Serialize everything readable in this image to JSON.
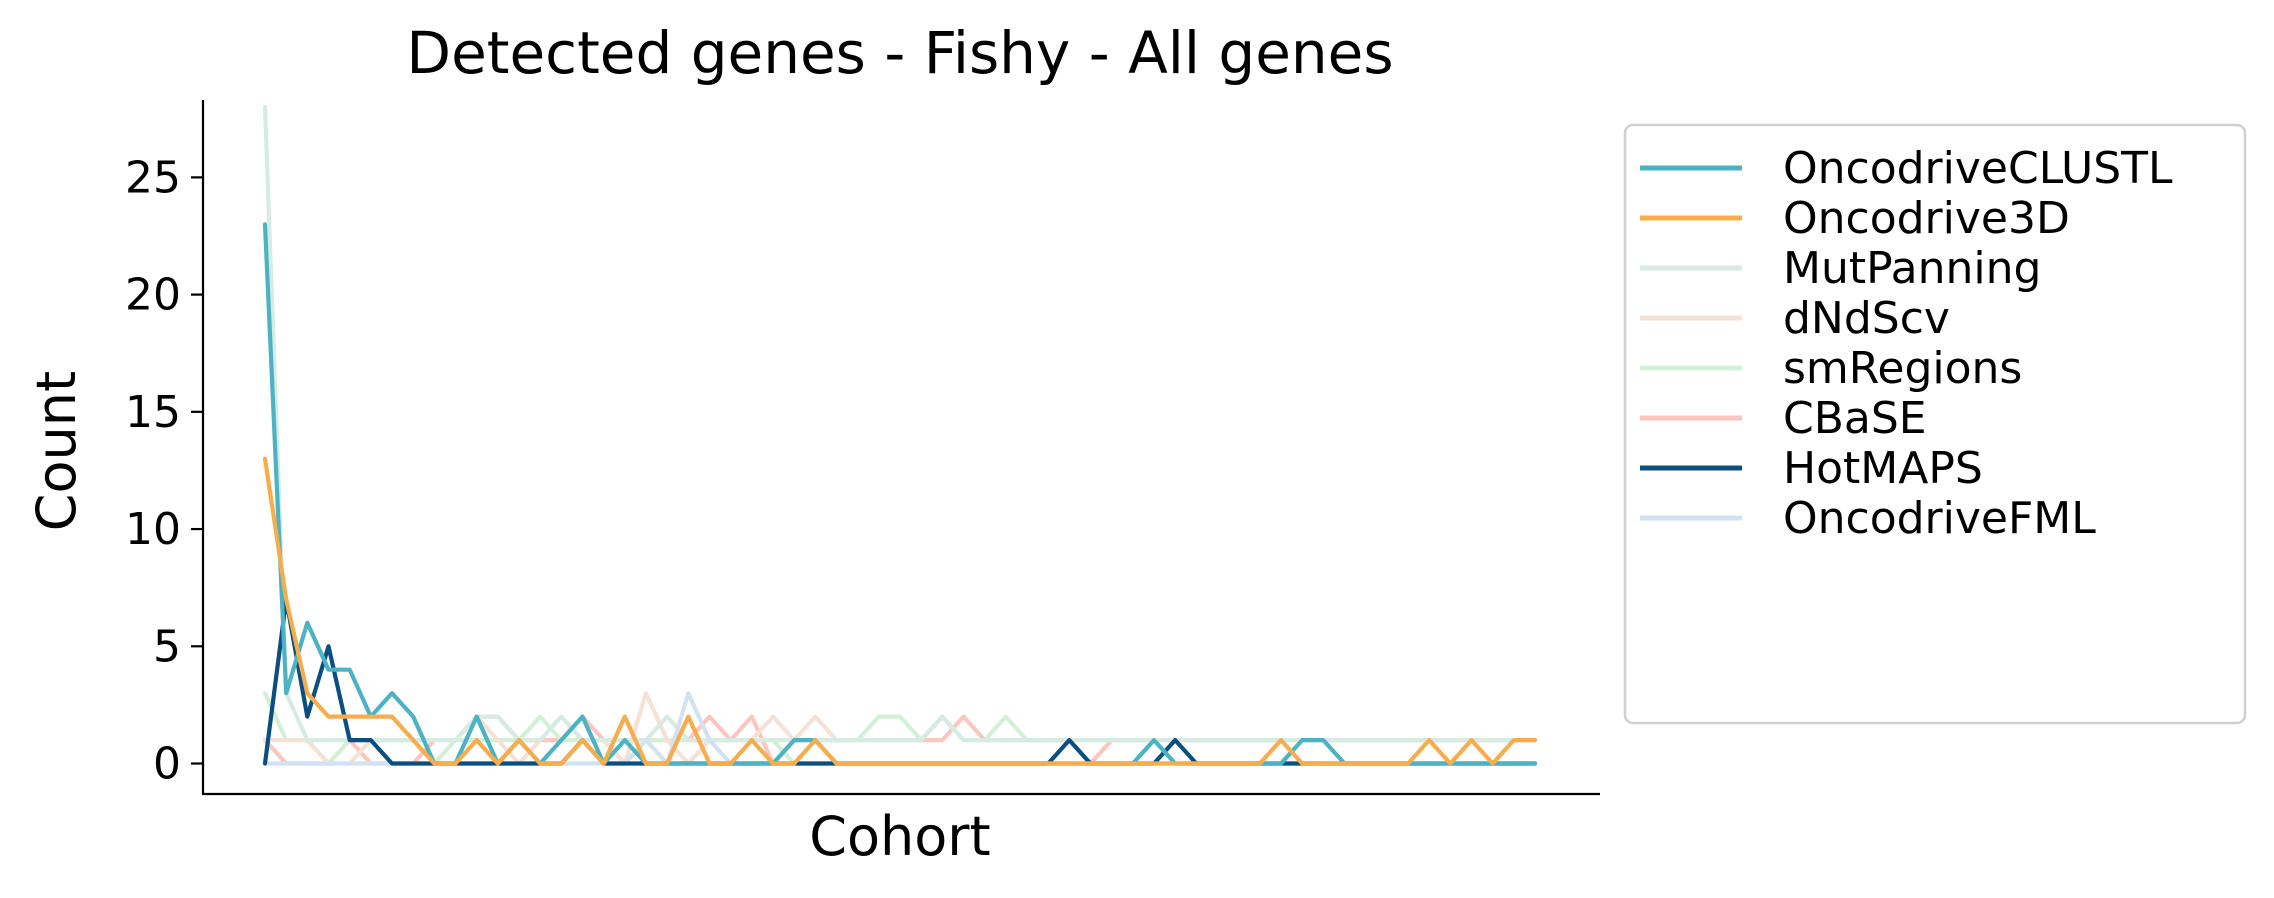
{
  "chart_data": {
    "type": "line",
    "title": "Detected genes - Fishy - All genes",
    "xlabel": "Cohort",
    "ylabel": "Count",
    "ylim": [
      -1.3,
      28.3
    ],
    "yticks": [
      0,
      5,
      10,
      15,
      20,
      25
    ],
    "x_tick_labels_shown": false,
    "grid": false,
    "legend_position": "outside-right",
    "n_cohorts": 61,
    "series": [
      {
        "name": "CBaSE",
        "color": "#fcc5c0",
        "values": [
          1,
          0,
          0,
          0,
          1,
          0,
          0,
          0,
          1,
          1,
          2,
          2,
          1,
          1,
          1,
          2,
          1,
          0,
          1,
          1,
          1,
          2,
          1,
          2,
          0,
          1,
          1,
          1,
          1,
          1,
          1,
          1,
          1,
          2,
          1,
          1,
          1,
          1,
          1,
          0,
          1,
          1,
          1,
          1,
          1,
          1,
          1,
          1,
          1,
          1,
          1,
          1,
          1,
          1,
          1,
          1,
          1,
          1,
          1,
          1,
          1
        ]
      },
      {
        "name": "smRegions",
        "color": "#d2f0d5",
        "values": [
          3,
          1,
          1,
          0,
          1,
          1,
          1,
          1,
          0,
          1,
          1,
          1,
          1,
          2,
          1,
          1,
          1,
          0,
          1,
          1,
          1,
          1,
          1,
          1,
          1,
          0,
          1,
          1,
          1,
          2,
          2,
          1,
          2,
          1,
          1,
          2,
          1,
          1,
          1,
          1,
          1,
          1,
          1,
          1,
          1,
          1,
          1,
          1,
          1,
          1,
          1,
          1,
          1,
          1,
          1,
          1,
          1,
          1,
          1,
          1,
          1
        ]
      },
      {
        "name": "dNdScv",
        "color": "#f5e1d6",
        "values": [
          1,
          1,
          1,
          0,
          0,
          1,
          1,
          1,
          1,
          1,
          2,
          1,
          0,
          1,
          2,
          1,
          1,
          0,
          3,
          1,
          0,
          1,
          1,
          1,
          2,
          1,
          2,
          1,
          1,
          1,
          1,
          1,
          2,
          1,
          1,
          1,
          1,
          1,
          1,
          1,
          1,
          1,
          1,
          1,
          1,
          1,
          1,
          1,
          1,
          1,
          1,
          1,
          1,
          1,
          1,
          1,
          1,
          1,
          1,
          1,
          1
        ]
      },
      {
        "name": "MutPanning",
        "color": "#d6ebe4",
        "values": [
          28,
          3,
          1,
          1,
          1,
          1,
          1,
          1,
          1,
          1,
          2,
          2,
          1,
          1,
          2,
          1,
          1,
          1,
          1,
          2,
          1,
          1,
          1,
          1,
          1,
          1,
          1,
          1,
          1,
          1,
          1,
          1,
          2,
          1,
          1,
          1,
          1,
          1,
          1,
          1,
          1,
          1,
          1,
          1,
          1,
          1,
          1,
          1,
          1,
          1,
          1,
          1,
          1,
          1,
          1,
          1,
          1,
          1,
          1,
          1,
          1
        ]
      },
      {
        "name": "OncodriveFML",
        "color": "#d2e2f4",
        "values": [
          0,
          0,
          0,
          0,
          0,
          0,
          0,
          0,
          0,
          0,
          0,
          0,
          0,
          0,
          0,
          0,
          0,
          0,
          1,
          0,
          3,
          1,
          0,
          0,
          0,
          0,
          0,
          0,
          0,
          0,
          0,
          0,
          0,
          0,
          0,
          0,
          0,
          0,
          0,
          0,
          0,
          0,
          0,
          0,
          0,
          0,
          0,
          0,
          0,
          0,
          0,
          0,
          0,
          0,
          0,
          0,
          0,
          0,
          0,
          0,
          0
        ]
      },
      {
        "name": "HotMAPS",
        "color": "#0b4f80",
        "values": [
          0,
          7,
          2,
          5,
          1,
          1,
          0,
          0,
          0,
          0,
          0,
          0,
          0,
          0,
          0,
          1,
          0,
          0,
          0,
          0,
          0,
          0,
          0,
          0,
          0,
          0,
          0,
          0,
          0,
          0,
          0,
          0,
          0,
          0,
          0,
          0,
          0,
          0,
          1,
          0,
          0,
          0,
          0,
          1,
          0,
          0,
          0,
          0,
          0,
          0,
          0,
          0,
          0,
          0,
          0,
          0,
          0,
          0,
          0,
          0,
          0
        ]
      },
      {
        "name": "OncodriveCLUSTL",
        "color": "#4bb3c3",
        "values": [
          23,
          3,
          6,
          4,
          4,
          2,
          3,
          2,
          0,
          0,
          2,
          0,
          1,
          0,
          1,
          2,
          0,
          1,
          0,
          0,
          0,
          0,
          0,
          0,
          0,
          1,
          1,
          0,
          0,
          0,
          0,
          0,
          0,
          0,
          0,
          0,
          0,
          0,
          0,
          0,
          0,
          0,
          1,
          0,
          0,
          0,
          0,
          0,
          0,
          1,
          1,
          0,
          0,
          0,
          0,
          0,
          0,
          0,
          0,
          0,
          0
        ]
      },
      {
        "name": "Oncodrive3D",
        "color": "#f8ad4c",
        "values": [
          13,
          7,
          3,
          2,
          2,
          2,
          2,
          1,
          0,
          0,
          1,
          0,
          1,
          0,
          0,
          1,
          0,
          2,
          0,
          0,
          2,
          0,
          0,
          1,
          0,
          0,
          1,
          0,
          0,
          0,
          0,
          0,
          0,
          0,
          0,
          0,
          0,
          0,
          0,
          0,
          0,
          0,
          0,
          0,
          0,
          0,
          0,
          0,
          1,
          0,
          0,
          0,
          0,
          0,
          0,
          1,
          0,
          1,
          0,
          1,
          1
        ]
      }
    ]
  },
  "legend_order": [
    "OncodriveCLUSTL",
    "Oncodrive3D",
    "MutPanning",
    "dNdScv",
    "smRegions",
    "CBaSE",
    "HotMAPS",
    "OncodriveFML"
  ]
}
